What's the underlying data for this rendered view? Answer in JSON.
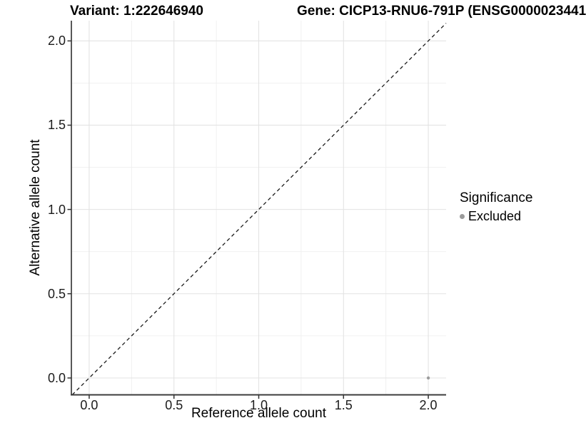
{
  "title": {
    "variant": "Variant: 1:222646940",
    "gene": "Gene: CICP13-RNU6-791P (ENSG0000023441"
  },
  "chart_data": {
    "type": "scatter",
    "title_left": "Variant: 1:222646940",
    "title_right": "Gene: CICP13-RNU6-791P (ENSG0000023441",
    "xlabel": "Reference allele count",
    "ylabel": "Alternative allele count",
    "xlim": [
      -0.105,
      2.105
    ],
    "ylim": [
      -0.1,
      2.12
    ],
    "x_ticks": {
      "values": [
        0,
        0.5,
        1,
        1.5,
        2
      ],
      "labels": [
        "0.0",
        "0.5",
        "1.0",
        "1.5",
        "2.0"
      ]
    },
    "y_ticks": {
      "values": [
        0,
        0.5,
        1,
        1.5,
        2
      ],
      "labels": [
        "0.0",
        "0.5",
        "1.0",
        "1.5",
        "2.0"
      ]
    },
    "grid": {
      "major": true,
      "minor": true
    },
    "identity_line": {
      "shown": true,
      "style": "dashed",
      "equation": "y = x"
    },
    "series": [
      {
        "name": "Excluded",
        "color": "#9b9b9b",
        "points": [
          [
            2,
            0
          ]
        ]
      }
    ],
    "legend": {
      "title": "Significance",
      "position": "right",
      "items": [
        {
          "label": "Excluded",
          "color": "#9b9b9b"
        }
      ]
    }
  },
  "colors": {
    "background": "#ffffff",
    "grid_major": "#e3e3e3",
    "grid_minor": "#efefef",
    "axis_line": "#3c3c3c",
    "tick_mark": "#333333",
    "dashed_line": "#1a1a1a",
    "point": "#9b9b9b",
    "tick_text": "#1b1b1b",
    "title_text": "#000000"
  }
}
